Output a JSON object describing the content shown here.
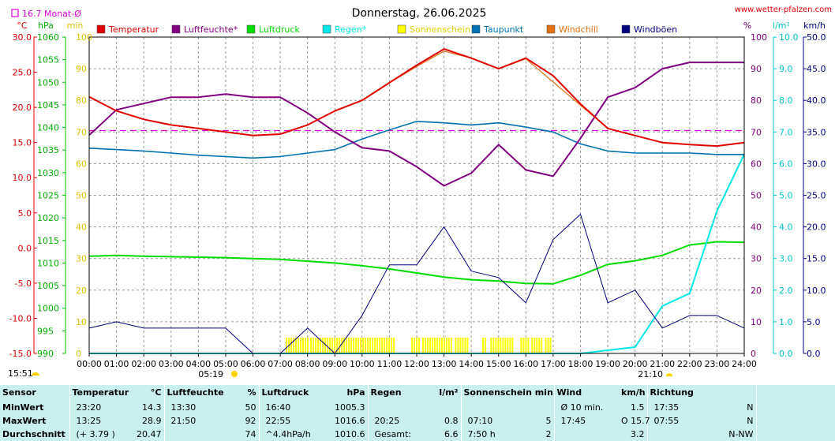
{
  "header": {
    "title": "Donnerstag, 26.06.2025",
    "site": "www.wetter-pfalzen.com",
    "monthly_avg": "16.7 Monat-Ø",
    "time": "15:51",
    "sunrise": "05:19",
    "sunset": "21:10"
  },
  "axes": {
    "left_units": [
      "°C",
      "hPa",
      "min"
    ],
    "right_units": [
      "%",
      "l/m²",
      "km/h"
    ],
    "temp_ticks": [
      "30.0",
      "25.0",
      "20.0",
      "15.0",
      "10.0",
      "5.0",
      "0.0",
      "-5.0",
      "-10.0",
      "-15.0"
    ],
    "press_ticks": [
      "1060",
      "1055",
      "1050",
      "1045",
      "1040",
      "1035",
      "1030",
      "1025",
      "1020",
      "1015",
      "1010",
      "1005",
      "1000",
      "995",
      "990"
    ],
    "min_ticks": [
      "100",
      "90",
      "80",
      "70",
      "60",
      "50",
      "40",
      "30",
      "20",
      "10",
      "0"
    ],
    "pct_ticks": [
      "100",
      "90",
      "80",
      "70",
      "60",
      "50",
      "40",
      "30",
      "20",
      "10",
      "0"
    ],
    "rain_ticks": [
      "10.0",
      "9.0",
      "8.0",
      "7.0",
      "6.0",
      "5.0",
      "4.0",
      "3.0",
      "2.0",
      "1.0",
      "0.0"
    ],
    "wind_ticks": [
      "50.0",
      "45.0",
      "40.0",
      "35.0",
      "30.0",
      "25.0",
      "20.0",
      "15.0",
      "10.0",
      "5.0",
      "0.0"
    ],
    "time_ticks": [
      "00:00",
      "01:00",
      "02:00",
      "03:00",
      "04:00",
      "05:00",
      "06:00",
      "07:00",
      "08:00",
      "09:00",
      "10:00",
      "11:00",
      "12:00",
      "13:00",
      "14:00",
      "15:00",
      "16:00",
      "17:00",
      "18:00",
      "19:00",
      "20:00",
      "21:00",
      "22:00",
      "23:00",
      "24:00"
    ]
  },
  "colors": {
    "temperature": "#e00000",
    "humidity": "#800080",
    "pressure": "#00dd00",
    "rain": "#00e8e8",
    "sunshine": "#ffff00",
    "dewpoint": "#0070b0",
    "windchill": "#e07010",
    "gusts": "#000080",
    "monthavg": "#e000e0"
  },
  "chart_data": {
    "type": "line",
    "x": [
      "00:00",
      "01:00",
      "02:00",
      "03:00",
      "04:00",
      "05:00",
      "06:00",
      "07:00",
      "08:00",
      "09:00",
      "10:00",
      "11:00",
      "12:00",
      "13:00",
      "14:00",
      "15:00",
      "16:00",
      "17:00",
      "18:00",
      "19:00",
      "20:00",
      "21:00",
      "22:00",
      "23:00",
      "24:00"
    ],
    "temperature_ylim": [
      -15,
      30
    ],
    "pressure_ylim": [
      990,
      1060
    ],
    "humidity_ylim": [
      0,
      100
    ],
    "rain_ylim": [
      0,
      10
    ],
    "wind_ylim": [
      0,
      50
    ],
    "sunshine_ylim": [
      0,
      100
    ],
    "monthly_avg_temp": 16.7,
    "series": [
      {
        "name": "Temperatur",
        "values": [
          21.5,
          19.5,
          18.3,
          17.5,
          17.0,
          16.5,
          16.0,
          16.2,
          17.5,
          19.5,
          21.0,
          23.5,
          26.0,
          28.3,
          27.0,
          25.5,
          27.0,
          24.5,
          20.5,
          17.0,
          16.0,
          15.0,
          14.7,
          14.5,
          15.0
        ]
      },
      {
        "name": "Luftfeuchte*",
        "values": [
          69,
          77,
          79,
          81,
          81,
          82,
          81,
          81,
          76,
          70,
          65,
          64,
          59,
          53,
          57,
          66,
          58,
          56,
          68,
          81,
          84,
          90,
          92,
          92,
          92
        ]
      },
      {
        "name": "Luftdruck",
        "values": [
          1011.5,
          1011.7,
          1011.5,
          1011.4,
          1011.3,
          1011.2,
          1011.0,
          1010.8,
          1010.4,
          1010.0,
          1009.4,
          1008.7,
          1007.8,
          1006.9,
          1006.3,
          1006.0,
          1005.5,
          1005.4,
          1007.3,
          1009.7,
          1010.5,
          1011.7,
          1014.0,
          1014.7,
          1014.6
        ]
      },
      {
        "name": "Regen*",
        "values": [
          0,
          0,
          0,
          0,
          0,
          0,
          0,
          0,
          0,
          0,
          0,
          0,
          0,
          0,
          0,
          0,
          0,
          0,
          0,
          0.1,
          0.2,
          1.5,
          1.9,
          4.5,
          6.3
        ]
      },
      {
        "name": "Taupunkt",
        "values": [
          14.2,
          14.0,
          13.8,
          13.5,
          13.2,
          13.0,
          12.8,
          13.0,
          13.5,
          14.0,
          15.5,
          16.8,
          18.0,
          17.8,
          17.5,
          17.8,
          17.2,
          16.5,
          14.8,
          13.8,
          13.5,
          13.5,
          13.5,
          13.3,
          13.3
        ]
      },
      {
        "name": "Windchill",
        "values": [
          21.5,
          19.5,
          18.3,
          17.5,
          17.0,
          16.5,
          16.0,
          16.2,
          17.5,
          19.5,
          21.0,
          23.5,
          25.8,
          28.0,
          27.0,
          25.5,
          26.9,
          23.6,
          20.3,
          17.0,
          16.0,
          15.0,
          14.7,
          14.5,
          15.0
        ]
      },
      {
        "name": "Windböen",
        "values": [
          4,
          5,
          4,
          4,
          4,
          4,
          0,
          0,
          4,
          0,
          6,
          14,
          14,
          20,
          13,
          12,
          8,
          18,
          22,
          8,
          10,
          4,
          6,
          6,
          4
        ]
      }
    ]
  },
  "legend": [
    {
      "label": "Temperatur",
      "color": "#e00000"
    },
    {
      "label": "Luftfeuchte*",
      "color": "#800080"
    },
    {
      "label": "Luftdruck",
      "color": "#00dd00"
    },
    {
      "label": "Regen*",
      "color": "#00e8e8"
    },
    {
      "label": "Sonnenschein",
      "color": "#ffff00"
    },
    {
      "label": "Taupunkt",
      "color": "#0070b0"
    },
    {
      "label": "Windchill",
      "color": "#e07010"
    },
    {
      "label": "Windböen",
      "color": "#000080"
    }
  ],
  "sunshine_blocks": [
    [
      7.2,
      8.0
    ],
    [
      8.1,
      11.2
    ],
    [
      11.8,
      12.1
    ],
    [
      12.2,
      13.3
    ],
    [
      13.4,
      13.9
    ],
    [
      14.4,
      14.5
    ],
    [
      14.7,
      15.5
    ],
    [
      15.8,
      16.1
    ],
    [
      16.2,
      16.6
    ],
    [
      16.7,
      16.9
    ]
  ],
  "stats": {
    "headers": [
      "Sensor",
      "Temperatur",
      "°C",
      "Luftfeuchte",
      "%",
      "Luftdruck",
      "hPa",
      "Regen",
      "l/m²",
      "Sonnenschein min",
      "",
      "Wind",
      "km/h",
      "Richtung",
      ""
    ],
    "rows": [
      [
        "MinWert",
        "23:20",
        "14.3",
        "13:30",
        "50",
        "16:40",
        "1005.3",
        "",
        "",
        "",
        "",
        "Ø 10 min.",
        "1.5",
        "17:35",
        "N"
      ],
      [
        "MaxWert",
        "13:25",
        "28.9",
        "21:50",
        "92",
        "22:55",
        "1016.6",
        "20:25",
        "0.8",
        "07:10",
        "5",
        "17:45",
        "O 15.7",
        "07:55",
        "N"
      ],
      [
        "Durchschnitt",
        "(+ 3.79 )",
        "20.47",
        "",
        "74",
        "^4.4hPa/h",
        "1010.6",
        "Gesamt:",
        "6.6",
        "7:50 h",
        "2",
        "",
        "3.2",
        "",
        "N-NW"
      ]
    ]
  }
}
